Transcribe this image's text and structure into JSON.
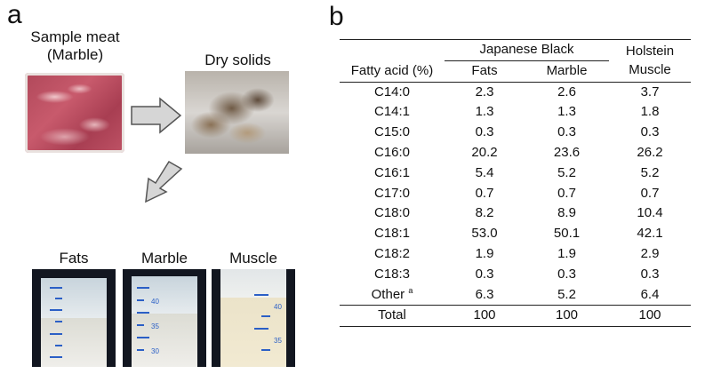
{
  "panel_a": {
    "letter": "a",
    "sample_label_line1": "Sample meat",
    "sample_label_line2": "(Marble)",
    "dry_label": "Dry solids",
    "tube_labels": [
      "Fats",
      "Marble",
      "Muscle"
    ],
    "tube_scale_numbers": [
      "40",
      "35",
      "30"
    ]
  },
  "panel_b": {
    "letter": "b",
    "group_japanese": "Japanese Black",
    "group_holstein": "Holstein",
    "col_fatty_acid": "Fatty acid (%)",
    "col_fats": "Fats",
    "col_marble": "Marble",
    "col_muscle": "Muscle",
    "rows": [
      {
        "acid": "C14:0",
        "fats": "2.3",
        "marble": "2.6",
        "muscle": "3.7"
      },
      {
        "acid": "C14:1",
        "fats": "1.3",
        "marble": "1.3",
        "muscle": "1.8"
      },
      {
        "acid": "C15:0",
        "fats": "0.3",
        "marble": "0.3",
        "muscle": "0.3"
      },
      {
        "acid": "C16:0",
        "fats": "20.2",
        "marble": "23.6",
        "muscle": "26.2"
      },
      {
        "acid": "C16:1",
        "fats": "5.4",
        "marble": "5.2",
        "muscle": "5.2"
      },
      {
        "acid": "C17:0",
        "fats": "0.7",
        "marble": "0.7",
        "muscle": "0.7"
      },
      {
        "acid": "C18:0",
        "fats": "8.2",
        "marble": "8.9",
        "muscle": "10.4"
      },
      {
        "acid": "C18:1",
        "fats": "53.0",
        "marble": "50.1",
        "muscle": "42.1"
      },
      {
        "acid": "C18:2",
        "fats": "1.9",
        "marble": "1.9",
        "muscle": "2.9"
      },
      {
        "acid": "C18:3",
        "fats": "0.3",
        "marble": "0.3",
        "muscle": "0.3"
      }
    ],
    "other": {
      "acid": "Other",
      "sup": "a",
      "fats": "6.3",
      "marble": "5.2",
      "muscle": "6.4"
    },
    "total": {
      "acid": "Total",
      "fats": "100",
      "marble": "100",
      "muscle": "100"
    }
  }
}
